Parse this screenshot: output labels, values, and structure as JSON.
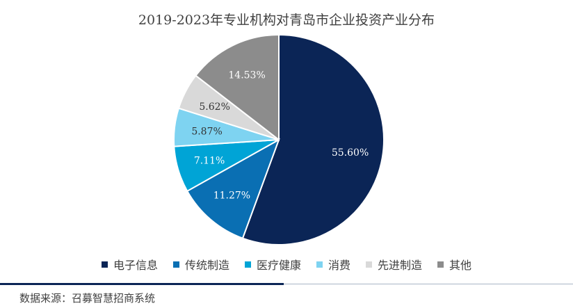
{
  "chart_data": {
    "type": "pie",
    "title": "2019-2023年专业机构对青岛市企业投资产业分布",
    "slices": [
      {
        "name": "电子信息",
        "value": 55.6,
        "label": "55.60%",
        "color": "#0b2556",
        "label_color": "#ffffff"
      },
      {
        "name": "传统制造",
        "value": 11.27,
        "label": "11.27%",
        "color": "#0a6fb3",
        "label_color": "#ffffff"
      },
      {
        "name": "医疗健康",
        "value": 7.11,
        "label": "7.11%",
        "color": "#00a4d6",
        "label_color": "#ffffff"
      },
      {
        "name": "消费",
        "value": 5.87,
        "label": "5.87%",
        "color": "#7ed3f1",
        "label_color": "#333333"
      },
      {
        "name": "先进制造",
        "value": 5.62,
        "label": "5.62%",
        "color": "#d9d9d9",
        "label_color": "#333333"
      },
      {
        "name": "其他",
        "value": 14.53,
        "label": "14.53%",
        "color": "#8c8c8c",
        "label_color": "#ffffff"
      }
    ],
    "start": "12 o'clock",
    "direction": "clockwise",
    "legend_position": "bottom"
  },
  "footer": {
    "source": "数据来源：召募智慧招商系统"
  }
}
